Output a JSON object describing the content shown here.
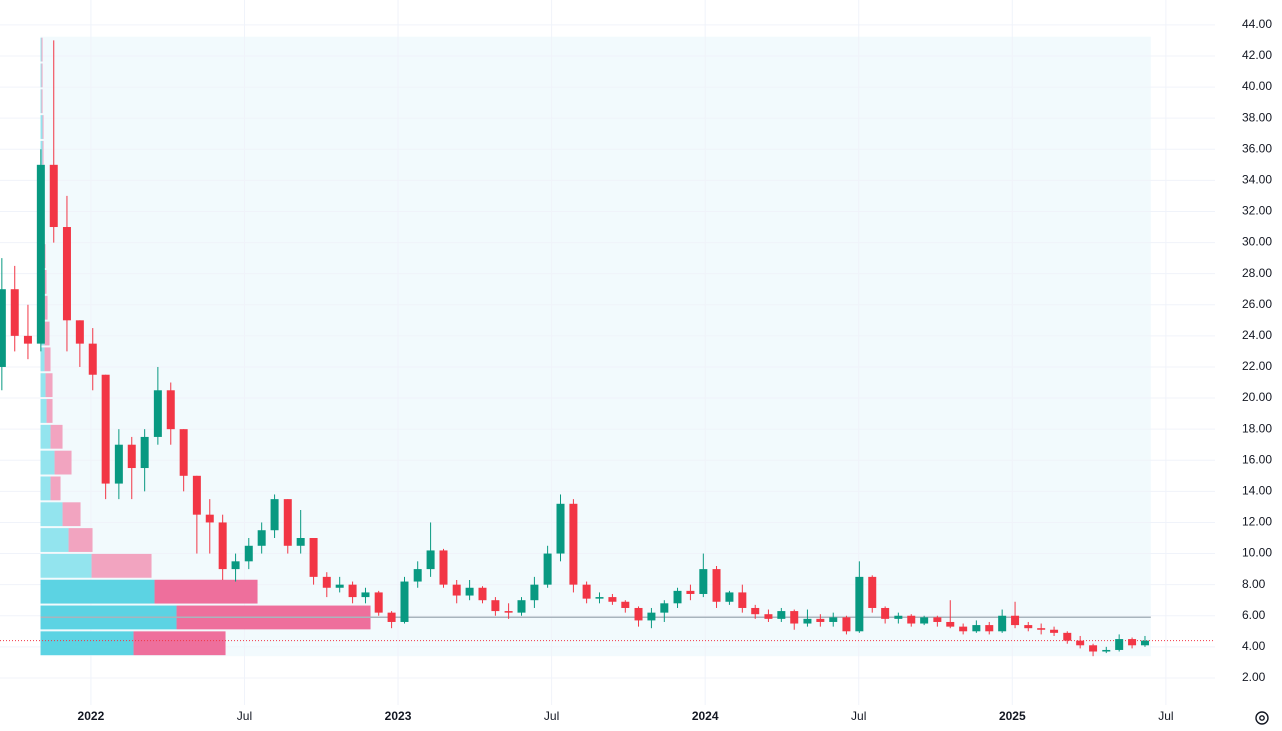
{
  "chart_data": {
    "type": "candlestick",
    "x": [
      2021.71,
      2021.752,
      2021.795,
      2021.837,
      2021.879,
      2021.922,
      2021.964,
      2022.006,
      2022.048,
      2022.091,
      2022.133,
      2022.175,
      2022.218,
      2022.26,
      2022.302,
      2022.345,
      2022.387,
      2022.429,
      2022.471,
      2022.514,
      2022.556,
      2022.598,
      2022.641,
      2022.683,
      2022.725,
      2022.768,
      2022.81,
      2022.852,
      2022.894,
      2022.937,
      2022.979,
      2023.021,
      2023.064,
      2023.106,
      2023.148,
      2023.191,
      2023.233,
      2023.275,
      2023.317,
      2023.36,
      2023.402,
      2023.444,
      2023.487,
      2023.529,
      2023.571,
      2023.614,
      2023.656,
      2023.698,
      2023.74,
      2023.783,
      2023.825,
      2023.867,
      2023.91,
      2023.952,
      2023.994,
      2024.037,
      2024.079,
      2024.121,
      2024.163,
      2024.206,
      2024.248,
      2024.29,
      2024.333,
      2024.375,
      2024.417,
      2024.46,
      2024.502,
      2024.544,
      2024.586,
      2024.629,
      2024.671,
      2024.713,
      2024.756,
      2024.798,
      2024.84,
      2024.883,
      2024.925,
      2024.967,
      2025.009,
      2025.052,
      2025.094,
      2025.136,
      2025.179,
      2025.221,
      2025.263,
      2025.306,
      2025.348,
      2025.39,
      2025.432
    ],
    "open": [
      22,
      27,
      24,
      23.5,
      35,
      31,
      25,
      23.5,
      21.5,
      14.5,
      17,
      15.5,
      17.5,
      20.5,
      18,
      15,
      12.5,
      12,
      9,
      9.5,
      10.5,
      11.5,
      13.5,
      10.5,
      11,
      8.5,
      7.8,
      8,
      7.2,
      7.5,
      6.2,
      5.6,
      8.2,
      9,
      10.2,
      8,
      7.3,
      7.8,
      7,
      6.3,
      6.2,
      7,
      8,
      10,
      13.2,
      8,
      7.1,
      7.2,
      6.9,
      6.5,
      5.7,
      6.2,
      6.8,
      7.6,
      7.4,
      9,
      6.9,
      7.5,
      6.5,
      6.1,
      5.8,
      6.3,
      5.5,
      5.8,
      5.6,
      5.9,
      5,
      8.5,
      6.5,
      5.8,
      6,
      5.5,
      5.9,
      5.6,
      5.3,
      5,
      5.4,
      5,
      6,
      5.4,
      5.2,
      5.1,
      4.9,
      4.4,
      4.1,
      3.7,
      3.8,
      4.5,
      4.1
    ],
    "high": [
      29,
      28.5,
      26,
      36,
      43,
      33,
      25,
      24.5,
      21.5,
      18,
      17.5,
      18,
      22,
      21,
      18,
      15,
      13.5,
      12.5,
      10,
      11,
      12,
      13.8,
      13.5,
      12.8,
      11,
      8.8,
      8.5,
      8.2,
      7.8,
      7.6,
      6.3,
      8.5,
      9.5,
      12,
      10.3,
      8.3,
      8.3,
      7.9,
      7.2,
      6.8,
      7.2,
      8.5,
      10.5,
      13.8,
      13.5,
      8.2,
      7.5,
      7.4,
      7,
      6.6,
      6.5,
      7,
      7.8,
      8,
      10,
      9.2,
      7.6,
      8,
      6.7,
      6.4,
      6.5,
      6.4,
      6.4,
      6.1,
      6.2,
      6,
      9.5,
      8.6,
      6.6,
      6.2,
      6.1,
      6,
      6,
      7,
      5.5,
      5.7,
      5.6,
      6.4,
      6.9,
      5.6,
      5.5,
      5.3,
      5,
      4.7,
      4.2,
      4,
      4.8,
      4.6,
      4.7
    ],
    "low": [
      20.5,
      23,
      22.5,
      23,
      30,
      23,
      22,
      20.5,
      13.5,
      13.5,
      13.5,
      14,
      17,
      17,
      14,
      10,
      10,
      8.3,
      8.2,
      9,
      10,
      11,
      10,
      10,
      8,
      7.2,
      7.5,
      6.8,
      6.8,
      6,
      5.2,
      5.5,
      7.8,
      8.5,
      7.8,
      6.8,
      7,
      6.8,
      6,
      5.8,
      6,
      6.5,
      7.8,
      9.5,
      7.5,
      6.8,
      6.8,
      6.7,
      6.2,
      5.3,
      5.2,
      5.6,
      6.5,
      7,
      7.2,
      6.5,
      6.7,
      6.2,
      5.8,
      5.6,
      5.6,
      5.1,
      5.3,
      5.3,
      5.3,
      4.8,
      4.9,
      6.2,
      5.5,
      5.5,
      5.3,
      5.4,
      5.3,
      5.2,
      4.8,
      4.9,
      4.8,
      4.9,
      5.2,
      5,
      4.8,
      4.7,
      4.2,
      3.9,
      3.4,
      3.6,
      3.7,
      3.9,
      4
    ],
    "close": [
      27,
      24,
      23.5,
      35,
      31,
      25,
      23.5,
      21.5,
      14.5,
      17,
      15.5,
      17.5,
      20.5,
      18,
      15,
      12.5,
      12,
      9,
      9.5,
      10.5,
      11.5,
      13.5,
      10.5,
      11,
      8.5,
      7.8,
      8,
      7.2,
      7.5,
      6.2,
      5.6,
      8.2,
      9,
      10.2,
      8,
      7.3,
      7.8,
      7,
      6.3,
      6.2,
      7,
      8,
      10,
      13.2,
      8,
      7.1,
      7.2,
      6.9,
      6.5,
      5.7,
      6.2,
      6.8,
      7.6,
      7.4,
      9,
      6.9,
      7.5,
      6.5,
      6.1,
      5.8,
      6.3,
      5.5,
      5.8,
      5.6,
      5.9,
      5,
      8.5,
      6.5,
      5.8,
      6,
      5.5,
      5.9,
      5.6,
      5.3,
      5,
      5.4,
      5,
      6,
      5.4,
      5.2,
      5.1,
      4.9,
      4.4,
      4.1,
      3.7,
      3.8,
      4.5,
      4.1,
      4.4
    ],
    "up_color": "#089981",
    "down_color": "#f23645",
    "xlim": [
      2021.704,
      2025.66
    ],
    "xticks": [
      {
        "value": 2022,
        "label": "2022"
      },
      {
        "value": 2022.5,
        "label": "Jul"
      },
      {
        "value": 2023,
        "label": "2023"
      },
      {
        "value": 2023.5,
        "label": "Jul"
      },
      {
        "value": 2024,
        "label": "2024"
      },
      {
        "value": 2024.5,
        "label": "Jul"
      },
      {
        "value": 2025,
        "label": "2025"
      },
      {
        "value": 2025.5,
        "label": "Jul"
      }
    ],
    "ylim": [
      0.26,
      45.6
    ],
    "yticks": [
      {
        "value": 2,
        "label": "2.00"
      },
      {
        "value": 4,
        "label": "4.00"
      },
      {
        "value": 6,
        "label": "6.00"
      },
      {
        "value": 8,
        "label": "8.00"
      },
      {
        "value": 10,
        "label": "10.00"
      },
      {
        "value": 12,
        "label": "12.00"
      },
      {
        "value": 14,
        "label": "14.00"
      },
      {
        "value": 16,
        "label": "16.00"
      },
      {
        "value": 18,
        "label": "18.00"
      },
      {
        "value": 20,
        "label": "20.00"
      },
      {
        "value": 22,
        "label": "22.00"
      },
      {
        "value": 24,
        "label": "24.00"
      },
      {
        "value": 26,
        "label": "26.00"
      },
      {
        "value": 28,
        "label": "28.00"
      },
      {
        "value": 30,
        "label": "30.00"
      },
      {
        "value": 32,
        "label": "32.00"
      },
      {
        "value": 34,
        "label": "34.00"
      },
      {
        "value": 36,
        "label": "36.00"
      },
      {
        "value": 38,
        "label": "38.00"
      },
      {
        "value": 40,
        "label": "40.00"
      },
      {
        "value": 42,
        "label": "42.00"
      },
      {
        "value": 44,
        "label": "44.00"
      }
    ],
    "grid": true,
    "volume_profile": {
      "range": [
        2021.836,
        2025.451
      ],
      "bins": [
        3.4,
        5.06,
        6.72,
        8.38,
        10.04,
        11.7,
        13.36,
        15.02,
        16.68,
        18.34,
        20,
        21.66,
        23.32,
        24.98,
        26.64,
        28.3,
        29.96,
        31.62,
        33.28,
        34.94,
        36.6,
        38.26,
        39.92,
        41.58,
        43.24
      ],
      "up": [
        93,
        136,
        114,
        51,
        28,
        22,
        10,
        14,
        10,
        6,
        5,
        4,
        4,
        3,
        3,
        3,
        2,
        2,
        2,
        2,
        2,
        1,
        1,
        1
      ],
      "down": [
        92,
        194,
        103,
        60,
        24,
        18,
        10,
        17,
        12,
        6,
        7,
        6,
        5,
        4,
        3,
        2,
        2,
        1,
        1,
        1,
        1,
        1,
        1,
        1
      ],
      "value_area": [
        3.4,
        8.38
      ],
      "up_color": "#5cd3e3",
      "down_color": "#ee6f9c",
      "up_color_outside": "#93e4ee",
      "down_color_outside": "#f2a4c0",
      "background": "#f2fafd",
      "poc": 5.9,
      "poc_color": "#a9b4bd"
    },
    "last_price": 4.4,
    "last_price_color": "#f23645"
  }
}
